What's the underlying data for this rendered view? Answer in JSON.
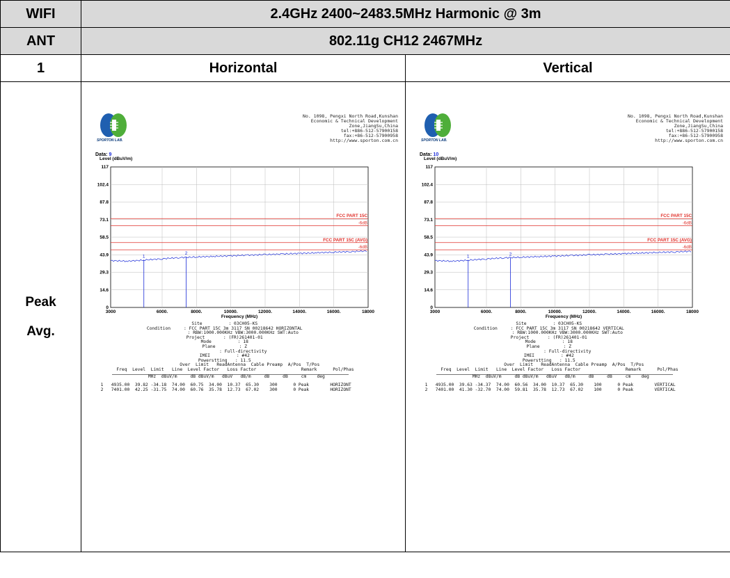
{
  "table": {
    "row1": {
      "label": "WIFI",
      "title": "2.4GHz 2400~2483.5MHz Harmonic @ 3m"
    },
    "row2": {
      "label": "ANT",
      "title": "802.11g CH12 2467MHz"
    },
    "row3": {
      "label": "1",
      "left": "Horizontal",
      "right": "Vertical"
    },
    "row4": {
      "label1": "Peak",
      "label2": "Avg."
    }
  },
  "report_header": {
    "lab_name": "SPORTON LAB.",
    "address_lines": [
      "No. 1098, Pengxi North Road,Kunshan",
      "Economic & Technical Development",
      "Zone,JiangSu,China",
      "tel:+886-512-57900158",
      "fax:+86-512-57900958",
      "http://www.sporton.com.cn"
    ]
  },
  "reports": [
    {
      "data_label": "Data:",
      "data_num": "9",
      "info_lines": [
        "Site          : 03CH05-KS",
        "Condition     : FCC PART 15C 3m 3117 SN 00218642 HORIZONTAL",
        "              : RBW:1000.000KHz VBW:3000.000KHz SWT:Auto",
        "Project       : (FR)261401-01",
        "Mode          : 18",
        "Plane         : Z",
        "              : Full-directivity",
        "IMEI          : #42",
        "Powerstting   : 11.5"
      ],
      "col_head1": "                   Over  Limit   ReadAntenna  Cable Preamp  A/Pos  T/Pos",
      "col_head2": "        Freq  Level  Limit   Line  Level Factor   Loss Factor                 Remark      Pol/Phas",
      "col_units": "         MHz  dBuV/m     dB dBuV/m   dBuV   dB/m     dB     dB     cm    deg",
      "rows": [
        " 1   4935.00  39.82 -34.18  74.00  60.75  34.00  10.37  65.30    300      0 Peak        HORIZONT",
        " 2   7401.00  42.25 -31.75  74.00  60.76  35.78  12.73  67.02    300      0 Peak        HORIZONT"
      ]
    },
    {
      "data_label": "Data:",
      "data_num": "10",
      "info_lines": [
        "Site          : 03CH05-KS",
        "Condition     : FCC PART 15C 3m 3117 SN 00218642 VERTICAL",
        "              : RBW:1000.000KHz VBW:3000.000KHz SWT:Auto",
        "Project       : (FR)261401-01",
        "Mode          : 18",
        "Plane         : Z",
        "              : Full-directivity",
        "IMEI          : #42",
        "Powerstting   : 11.5"
      ],
      "col_head1": "                   Over  Limit   ReadAntenna  Cable Preamp  A/Pos  T/Pos",
      "col_head2": "        Freq  Level  Limit   Line  Level Factor   Loss Factor                 Remark      Pol/Phas",
      "col_units": "         MHz  dBuV/m     dB dBuV/m   dBuV   dB/m     dB     dB     cm    deg",
      "rows": [
        " 1   4935.00  39.63 -34.37  74.00  60.56  34.00  10.37  65.30    100      0 Peak        VERTICAL",
        " 2   7401.00  41.30 -32.70  74.00  59.81  35.78  12.73  67.02    100      0 Peak        VERTICAL"
      ]
    }
  ],
  "chart_data": [
    {
      "type": "line",
      "ylabel": "Level (dBuV/m)",
      "xlabel": "Frequency (MHz)",
      "xlim": [
        3000,
        18000
      ],
      "ylim": [
        0,
        117
      ],
      "yticks": [
        "117",
        "102.4",
        "87.8",
        "73.1",
        "58.5",
        "43.9",
        "29.3",
        "14.6",
        "0"
      ],
      "xticks": [
        "3000",
        "6000.",
        "8000.",
        "10000.",
        "12000.",
        "14000.",
        "16000.",
        "18000"
      ],
      "limits": [
        {
          "name": "FCC PART 15C",
          "value": 74,
          "color": "#e0302a"
        },
        {
          "name": "-6dB",
          "value": 68,
          "color": "#e0302a"
        },
        {
          "name": "FCC PART 15C (AVG)",
          "value": 54,
          "color": "#e0302a"
        },
        {
          "name": "-6dB",
          "value": 48,
          "color": "#e0302a"
        }
      ],
      "markers": [
        {
          "label": "1",
          "x": 4935,
          "y": 39.82
        },
        {
          "label": "2",
          "x": 7401,
          "y": 42.25
        }
      ],
      "trace": {
        "x": [
          3000,
          4000,
          5000,
          6000,
          7000,
          8000,
          9000,
          10000,
          11000,
          12000,
          13000,
          14000,
          15000,
          16000,
          17000,
          18000
        ],
        "y": [
          39,
          38.5,
          39.5,
          40.5,
          41.5,
          42,
          42.5,
          43,
          43.5,
          44,
          44.5,
          45,
          45.5,
          46,
          46.5,
          47
        ]
      }
    },
    {
      "type": "line",
      "ylabel": "Level (dBuV/m)",
      "xlabel": "Frequency (MHz)",
      "xlim": [
        3000,
        18000
      ],
      "ylim": [
        0,
        117
      ],
      "yticks": [
        "117",
        "102.4",
        "87.8",
        "73.1",
        "58.5",
        "43.9",
        "29.3",
        "14.6",
        "0"
      ],
      "xticks": [
        "3000",
        "6000.",
        "8000.",
        "10000.",
        "12000.",
        "14000.",
        "16000.",
        "18000"
      ],
      "limits": [
        {
          "name": "FCC PART 15C",
          "value": 74,
          "color": "#e0302a"
        },
        {
          "name": "-6dB",
          "value": 68,
          "color": "#e0302a"
        },
        {
          "name": "FCC PART 15C (AVG)",
          "value": 54,
          "color": "#e0302a"
        },
        {
          "name": "-6dB",
          "value": 48,
          "color": "#e0302a"
        }
      ],
      "markers": [
        {
          "label": "1",
          "x": 4935,
          "y": 39.63
        },
        {
          "label": "2",
          "x": 7401,
          "y": 41.3
        }
      ],
      "trace": {
        "x": [
          3000,
          4000,
          5000,
          6000,
          7000,
          8000,
          9000,
          10000,
          11000,
          12000,
          13000,
          14000,
          15000,
          16000,
          17000,
          18000
        ],
        "y": [
          39,
          38.5,
          39.4,
          40.4,
          41.3,
          41.8,
          42.3,
          42.8,
          43.3,
          43.8,
          44.3,
          44.8,
          45.3,
          45.8,
          46.3,
          46.8
        ]
      }
    }
  ]
}
